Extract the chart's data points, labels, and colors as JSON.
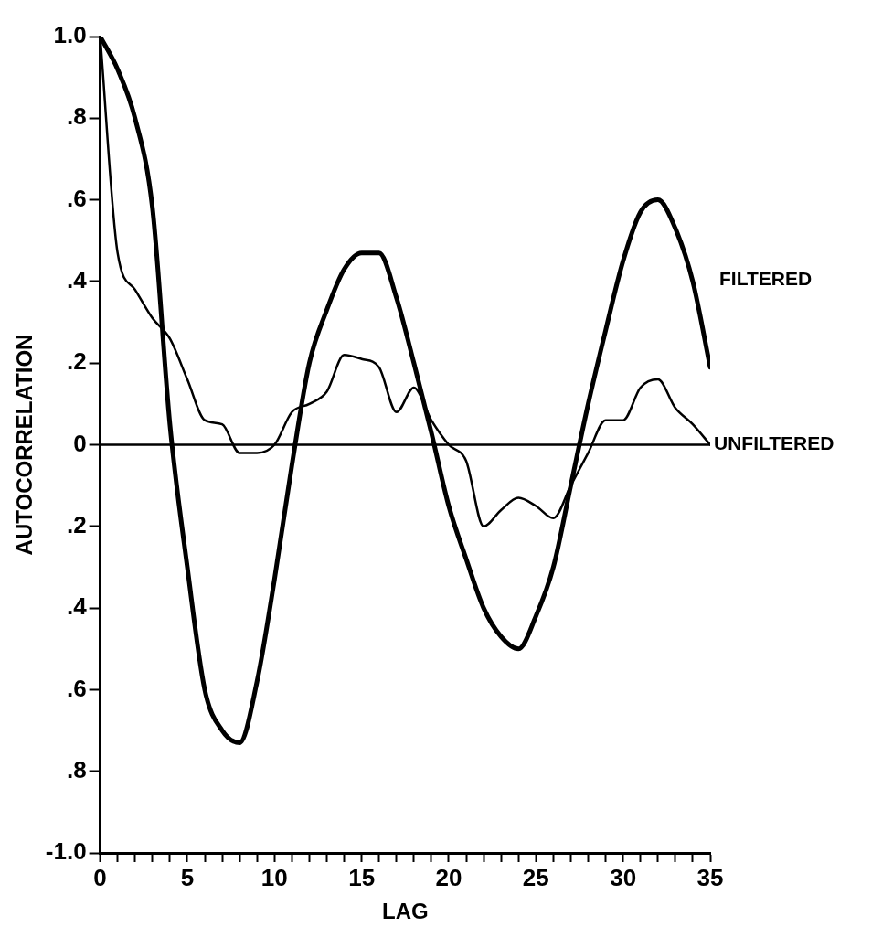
{
  "chart_data": {
    "type": "line",
    "xlabel": "LAG",
    "ylabel": "AUTOCORRELATION",
    "x": [
      0,
      1,
      2,
      3,
      4,
      5,
      6,
      7,
      8,
      9,
      10,
      11,
      12,
      13,
      14,
      15,
      16,
      17,
      18,
      19,
      20,
      21,
      22,
      23,
      24,
      25,
      26,
      27,
      28,
      29,
      30,
      31,
      32,
      33,
      34,
      35
    ],
    "series": [
      {
        "name": "FILTERED",
        "color": "#000000",
        "values": [
          1.0,
          0.92,
          0.8,
          0.58,
          0.05,
          -0.3,
          -0.6,
          -0.7,
          -0.73,
          -0.58,
          -0.33,
          -0.05,
          0.2,
          0.33,
          0.43,
          0.47,
          0.47,
          0.36,
          0.2,
          0.03,
          -0.15,
          -0.28,
          -0.4,
          -0.47,
          -0.5,
          -0.42,
          -0.3,
          -0.1,
          0.1,
          0.28,
          0.45,
          0.57,
          0.6,
          0.53,
          0.4,
          0.19
        ]
      },
      {
        "name": "UNFILTERED",
        "color": "#000000",
        "values": [
          1.0,
          0.47,
          0.38,
          0.31,
          0.26,
          0.16,
          0.06,
          0.05,
          -0.02,
          -0.02,
          0.0,
          0.08,
          0.1,
          0.13,
          0.22,
          0.21,
          0.19,
          0.08,
          0.14,
          0.06,
          0.0,
          -0.04,
          -0.2,
          -0.16,
          -0.13,
          -0.15,
          -0.18,
          -0.1,
          -0.02,
          0.06,
          0.06,
          0.14,
          0.16,
          0.09,
          0.05,
          0.0
        ]
      }
    ],
    "xlim": [
      0,
      35
    ],
    "xticks": [
      0,
      {
        "value": 1,
        "label": null
      },
      {
        "value": 2,
        "label": null
      },
      {
        "value": 3,
        "label": null
      },
      {
        "value": 4,
        "label": null
      },
      5,
      {
        "value": 6,
        "label": null
      },
      {
        "value": 7,
        "label": null
      },
      {
        "value": 8,
        "label": null
      },
      {
        "value": 9,
        "label": null
      },
      10,
      {
        "value": 11,
        "label": null
      },
      {
        "value": 12,
        "label": null
      },
      {
        "value": 13,
        "label": null
      },
      {
        "value": 14,
        "label": null
      },
      15,
      {
        "value": 16,
        "label": null
      },
      {
        "value": 17,
        "label": null
      },
      {
        "value": 18,
        "label": null
      },
      {
        "value": 19,
        "label": null
      },
      20,
      {
        "value": 21,
        "label": null
      },
      {
        "value": 22,
        "label": null
      },
      {
        "value": 23,
        "label": null
      },
      {
        "value": 24,
        "label": null
      },
      25,
      {
        "value": 26,
        "label": null
      },
      {
        "value": 27,
        "label": null
      },
      {
        "value": 28,
        "label": null
      },
      {
        "value": 29,
        "label": null
      },
      30,
      {
        "value": 31,
        "label": null
      },
      {
        "value": 32,
        "label": null
      },
      {
        "value": 33,
        "label": null
      },
      {
        "value": 34,
        "label": null
      },
      35
    ],
    "ylim": [
      -1.0,
      1.0
    ],
    "yticks": [
      {
        "value": -1.0,
        "label": "-1.0"
      },
      {
        "value": -0.8,
        "label": ".8"
      },
      {
        "value": -0.6,
        "label": ".6"
      },
      {
        "value": -0.4,
        "label": ".4"
      },
      {
        "value": -0.2,
        "label": ".2"
      },
      0,
      {
        "value": 0.2,
        "label": ".2"
      },
      {
        "value": 0.4,
        "label": ".4"
      },
      {
        "value": 0.6,
        "label": ".6"
      },
      {
        "value": 0.8,
        "label": ".8"
      },
      {
        "value": 1.0,
        "label": "1.0"
      }
    ],
    "ref_lines": [
      {
        "axis": "y",
        "value": 0,
        "label": null,
        "color": "#000000"
      }
    ],
    "grid": false,
    "legend": false,
    "marker": "none",
    "line_style": "solid"
  }
}
